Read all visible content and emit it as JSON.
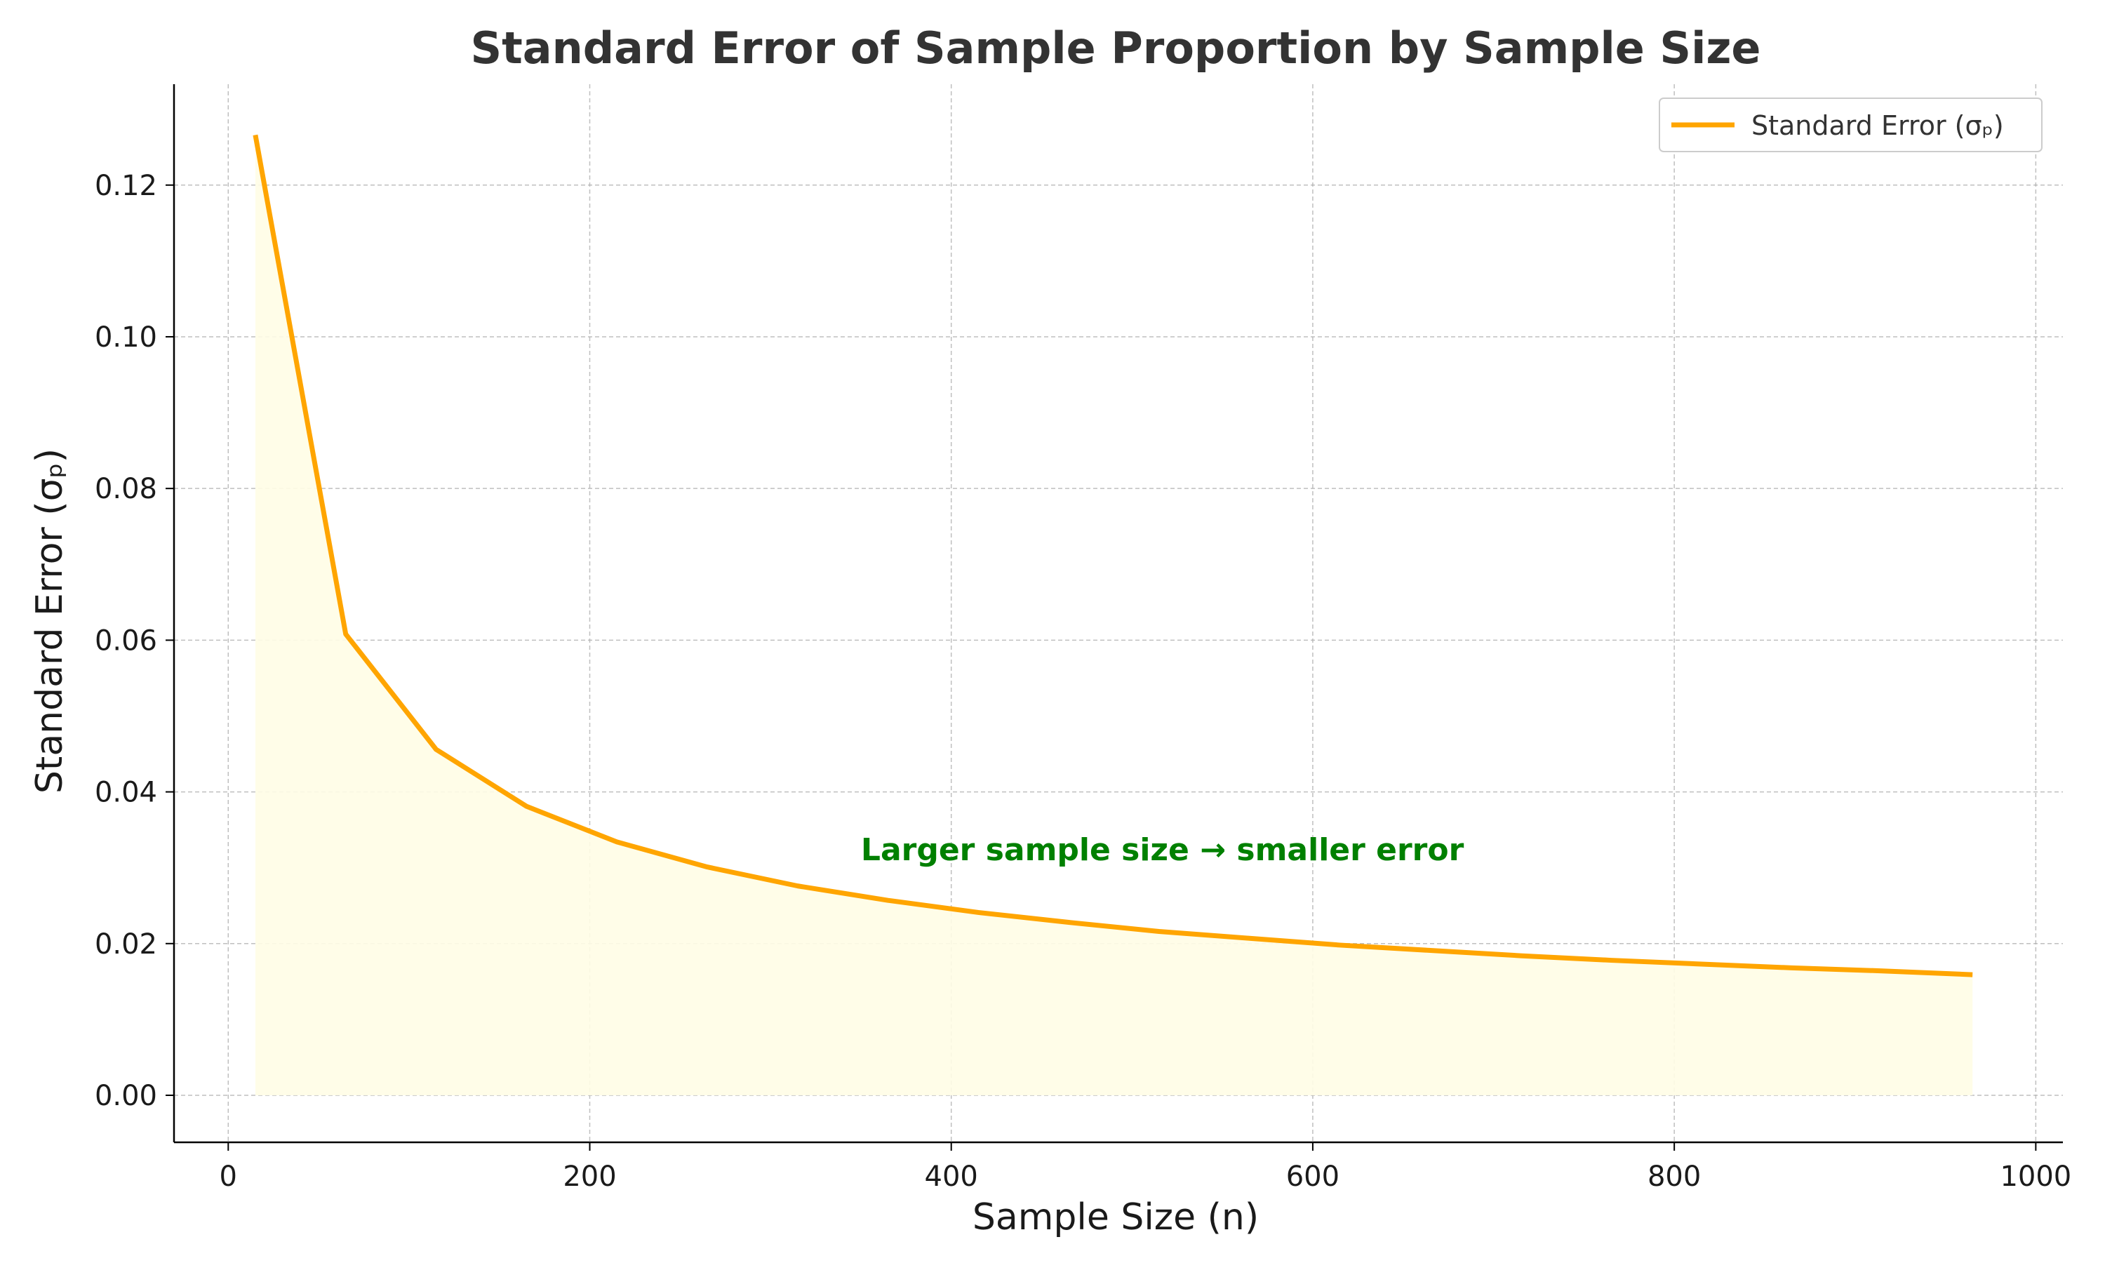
{
  "chart_data": {
    "type": "line",
    "title": "Standard Error of Sample Proportion by Sample Size",
    "xlabel": "Sample Size (n)",
    "ylabel": "Standard Error (σₚ)",
    "xlim": [
      -30,
      1015
    ],
    "ylim": [
      -0.0062,
      0.1333
    ],
    "xticks": [
      0,
      200,
      400,
      600,
      800,
      1000
    ],
    "xtick_labels": [
      "0",
      "200",
      "400",
      "600",
      "800",
      "1000"
    ],
    "yticks": [
      0.0,
      0.02,
      0.04,
      0.06,
      0.08,
      0.1,
      0.12
    ],
    "ytick_labels": [
      "0.00",
      "0.02",
      "0.04",
      "0.06",
      "0.08",
      "0.10",
      "0.12"
    ],
    "grid": true,
    "legend_position": "top-right",
    "series": [
      {
        "name": "Standard Error (σₚ)",
        "color": "#ffa500",
        "fill_color": "#fffde6",
        "x": [
          15,
          65,
          115,
          165,
          215,
          265,
          315,
          365,
          415,
          465,
          515,
          565,
          615,
          665,
          715,
          765,
          815,
          865,
          915,
          965
        ],
        "y": [
          0.1266,
          0.0608,
          0.0456,
          0.0381,
          0.0334,
          0.0301,
          0.0276,
          0.0257,
          0.0241,
          0.0228,
          0.0216,
          0.0207,
          0.0198,
          0.0191,
          0.0184,
          0.0178,
          0.0173,
          0.0168,
          0.0164,
          0.0159
        ]
      }
    ],
    "annotation": {
      "text": "Larger sample size → smaller error",
      "x": 350,
      "y": 0.031,
      "color": "#008000"
    }
  }
}
